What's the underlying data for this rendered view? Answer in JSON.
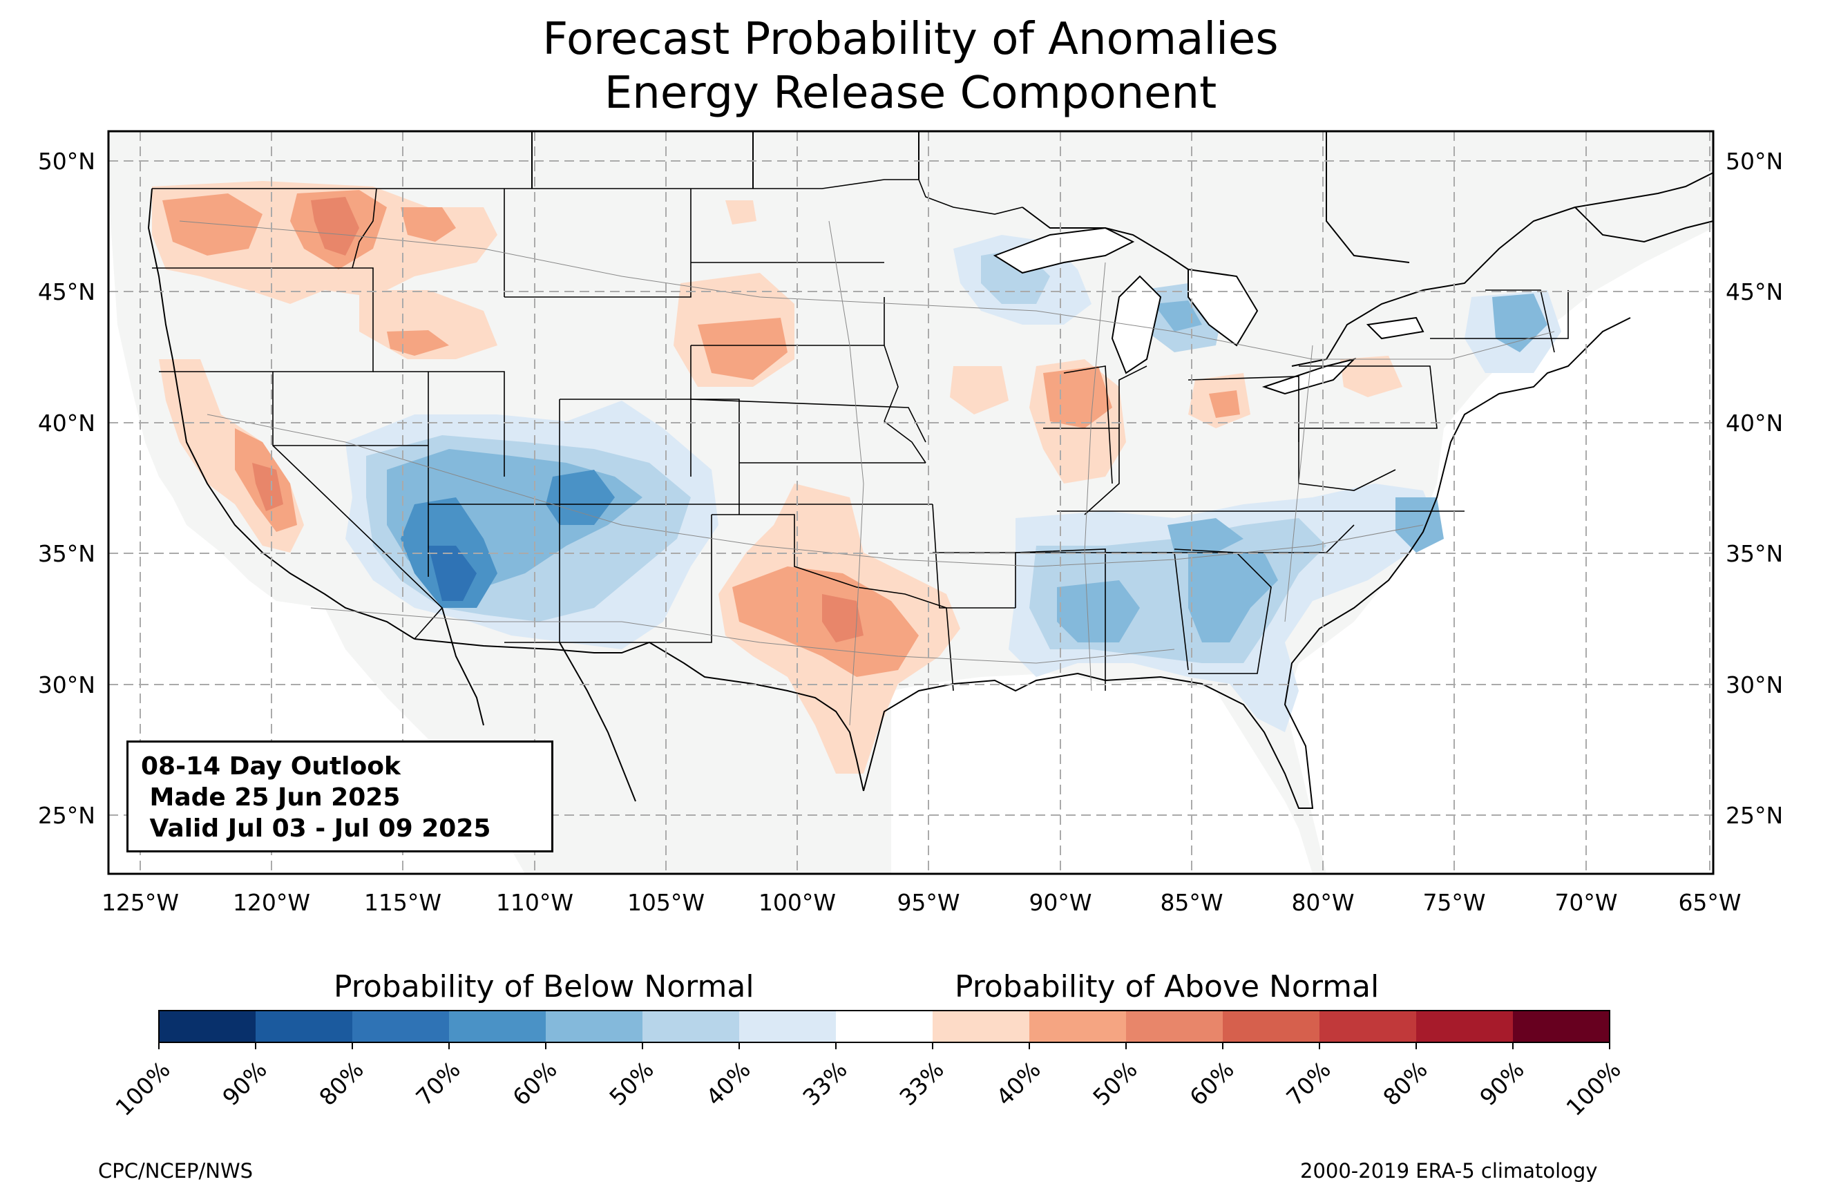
{
  "title": {
    "line1": "Forecast Probability of Anomalies",
    "line2": "Energy Release Component"
  },
  "map": {
    "lon_ticks": [
      "125°W",
      "120°W",
      "115°W",
      "110°W",
      "105°W",
      "100°W",
      "95°W",
      "90°W",
      "85°W",
      "80°W",
      "75°W",
      "70°W",
      "65°W"
    ],
    "lat_ticks": [
      "50°N",
      "45°N",
      "40°N",
      "35°N",
      "30°N",
      "25°N"
    ],
    "extent": {
      "lon": [
        -126.2,
        -64.9
      ],
      "lat": [
        22.8,
        51.3
      ]
    },
    "grid": "dashed",
    "background_color": "#f4f5f4"
  },
  "outlook_box": {
    "line1": "08-14 Day Outlook",
    "line2": " Made 25 Jun 2025",
    "line3": " Valid Jul 03 - Jul 09 2025"
  },
  "legend": {
    "below_label": "Probability of Below Normal",
    "above_label": "Probability of Above Normal",
    "ticks": [
      "100%",
      "90%",
      "80%",
      "70%",
      "60%",
      "50%",
      "40%",
      "33%",
      "33%",
      "40%",
      "50%",
      "60%",
      "70%",
      "80%",
      "90%",
      "100%"
    ],
    "colors": [
      "#08306b",
      "#1b5a9e",
      "#2f73b5",
      "#4a92c6",
      "#84b9db",
      "#b7d5ea",
      "#dbe9f6",
      "#ffffff",
      "#fddbc7",
      "#f5a582",
      "#e8866a",
      "#d6604d",
      "#c1393a",
      "#a71b2b",
      "#67001f"
    ]
  },
  "credits": {
    "left": "CPC/NCEP/NWS",
    "right": "2000-2019 ERA-5 climatology"
  }
}
